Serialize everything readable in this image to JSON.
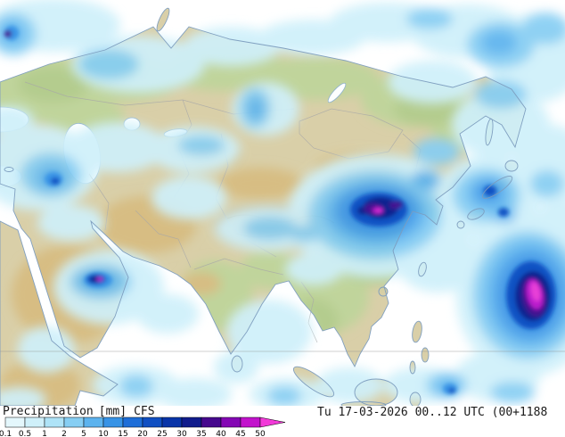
{
  "legend": {
    "parameter": "Precipitation",
    "unit": "[mm]",
    "model": "CFS",
    "timestamp": "Tu 17-03-2026 00..12 UTC (00+1188",
    "scale_labels": [
      "0.1",
      "0.5",
      "1",
      "2",
      "5",
      "10",
      "15",
      "20",
      "25",
      "30",
      "35",
      "40",
      "45",
      "50"
    ],
    "scale_colors": [
      "#e4f7fc",
      "#cff0fa",
      "#aee3f7",
      "#86cef3",
      "#5cb3ee",
      "#3793e6",
      "#1e6ed8",
      "#104fc2",
      "#0834a8",
      "#101c8c",
      "#46098e",
      "#8408b4",
      "#c213cc",
      "#f23ad8"
    ]
  },
  "map": {
    "region": "Asia",
    "precip_levels_mm": [
      0.1,
      0.5,
      1,
      2,
      5,
      10,
      15,
      20,
      25,
      30,
      35,
      40,
      45,
      50
    ],
    "colors": {
      "ocean": "#ffffff",
      "land": "#d9cfa8",
      "vegetation": "#c0d49b",
      "desert": "#d7bd83",
      "coastline": "#7c9cbe",
      "border": "#a8a8a8",
      "gridline": "#8f8f8f"
    }
  }
}
